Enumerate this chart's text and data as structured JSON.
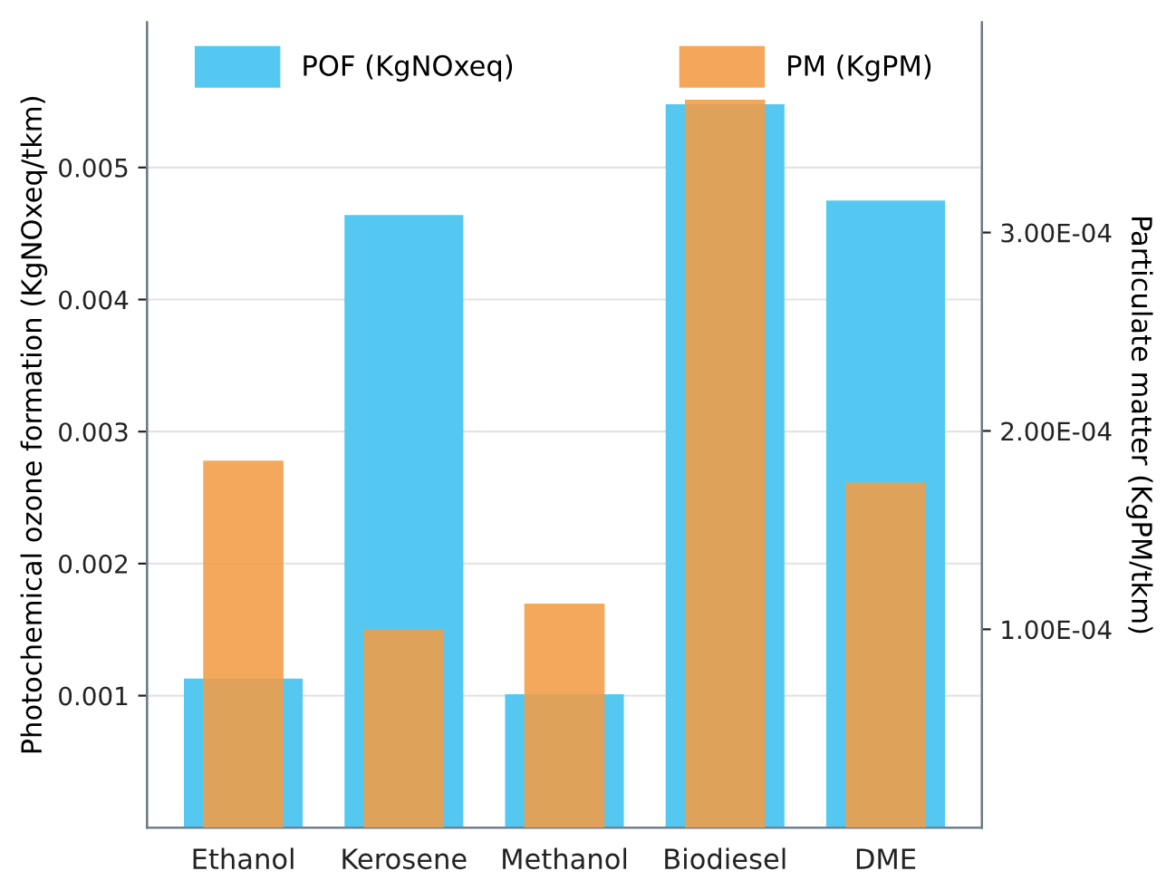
{
  "chart_data": {
    "type": "bar",
    "categories": [
      "Ethanol",
      "Kerosene",
      "Methanol",
      "Biodiesel",
      "DME"
    ],
    "series": [
      {
        "name": "POF (KgNOxeq)",
        "color": "#55c8f2",
        "values": [
          0.00113,
          0.00464,
          0.00101,
          0.00548,
          0.00475
        ]
      },
      {
        "name": "PM (KgPM)",
        "color": "#f39c45",
        "axis": "y2",
        "values": [
          0.000185,
          0.0001,
          0.000113,
          0.000367,
          0.000174
        ]
      }
    ],
    "ylabel": "Photochemical ozone formation (KgNOxeq/tkm)",
    "y2label": "Particulate matter (KgPM/tkm)",
    "ylim": [
      0,
      0.0061
    ],
    "yticks": [
      0.001,
      0.002,
      0.003,
      0.004,
      0.005
    ],
    "y2lim": [
      0,
      0.000406
    ],
    "y2ticks": [
      {
        "value": 0.0001,
        "label": "1.00E-04"
      },
      {
        "value": 0.0002,
        "label": "2.00E-04"
      },
      {
        "value": 0.0003,
        "label": "3.00E-04"
      }
    ],
    "grid": "y",
    "legend": "top"
  }
}
